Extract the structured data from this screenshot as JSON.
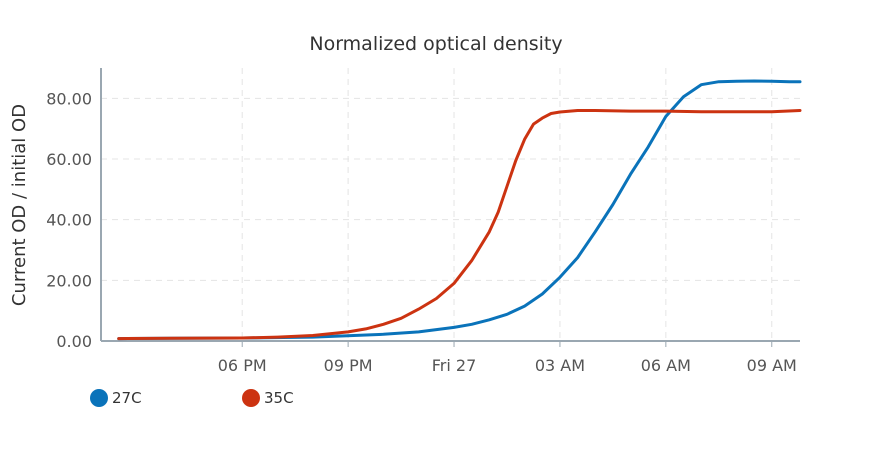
{
  "chart_data": {
    "type": "line",
    "title": "Normalized optical density",
    "xlabel": "",
    "ylabel": "Current OD / initial OD",
    "x_unit": "hours",
    "x_start": "2024-09-26T14:00",
    "xlim": [
      0,
      19.8
    ],
    "ylim": [
      0,
      90
    ],
    "y_ticks": [
      0,
      20,
      40,
      60,
      80
    ],
    "y_tick_labels": [
      "0.00",
      "20.00",
      "40.00",
      "60.00",
      "80.00"
    ],
    "x_ticks": [
      4,
      7,
      10,
      13,
      16,
      19
    ],
    "x_tick_labels": [
      "06 PM",
      "09 PM",
      "Fri 27",
      "03 AM",
      "06 AM",
      "09 AM"
    ],
    "grid": true,
    "legend_position": "bottom-left",
    "series": [
      {
        "name": "27C",
        "color": "#0a73ba",
        "x": [
          0.5,
          2,
          4,
          6,
          8,
          9,
          10,
          10.5,
          11,
          11.5,
          12,
          12.5,
          13,
          13.5,
          14,
          14.5,
          15,
          15.5,
          16,
          16.5,
          17,
          17.5,
          18,
          18.5,
          19,
          19.5,
          19.8
        ],
        "y": [
          0.8,
          0.9,
          1.0,
          1.3,
          2.2,
          3.0,
          4.5,
          5.5,
          7.0,
          8.8,
          11.5,
          15.5,
          21.0,
          27.5,
          36.0,
          45.0,
          55.0,
          64.0,
          74.0,
          80.5,
          84.5,
          85.5,
          85.6,
          85.7,
          85.6,
          85.5,
          85.5
        ]
      },
      {
        "name": "35C",
        "color": "#cc3311",
        "x": [
          0.5,
          2,
          4,
          5,
          6,
          7,
          7.5,
          8,
          8.5,
          9,
          9.5,
          10,
          10.5,
          11,
          11.25,
          11.5,
          11.75,
          12,
          12.25,
          12.5,
          12.75,
          13,
          13.5,
          14,
          15,
          16,
          17,
          18,
          19,
          19.8
        ],
        "y": [
          0.8,
          0.9,
          1.0,
          1.3,
          1.8,
          3.0,
          4.0,
          5.5,
          7.5,
          10.5,
          14.0,
          19.0,
          26.5,
          36.0,
          42.5,
          51.0,
          59.5,
          66.5,
          71.5,
          73.5,
          75.0,
          75.5,
          76.0,
          76.0,
          75.8,
          75.8,
          75.6,
          75.6,
          75.6,
          76.0
        ]
      }
    ]
  }
}
